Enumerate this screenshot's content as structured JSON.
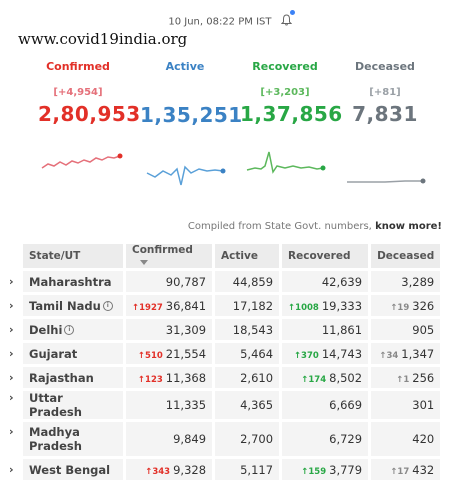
{
  "header": {
    "timestamp": "10 Jun, 08:22 PM IST",
    "site_watermark": "www.covid19india.org"
  },
  "stats": {
    "confirmed": {
      "label": "Confirmed",
      "delta": "[+4,954]",
      "value": "2,80,953",
      "color": "#e23028"
    },
    "active": {
      "label": "Active",
      "delta": "",
      "value": "1,35,251",
      "color": "#3b82c4"
    },
    "recovered": {
      "label": "Recovered",
      "delta": "[+3,203]",
      "value": "1,37,856",
      "color": "#28a745"
    },
    "deceased": {
      "label": "Deceased",
      "delta": "[+81]",
      "value": "7,831",
      "color": "#6c757d"
    }
  },
  "compiled": {
    "text": "Compiled from State Govt. numbers,",
    "link": "know more!"
  },
  "table": {
    "headers": {
      "state": "State/UT",
      "confirmed": "Confirmed",
      "active": "Active",
      "recovered": "Recovered",
      "deceased": "Deceased"
    },
    "rows": [
      {
        "state": "Maharashtra",
        "conf_inc": "",
        "confirmed": "90,787",
        "active": "44,859",
        "rec_inc": "",
        "recovered": "42,639",
        "dec_inc": "",
        "deceased": "3,289"
      },
      {
        "state": "Tamil Nadu",
        "conf_inc": "1927",
        "confirmed": "36,841",
        "active": "17,182",
        "rec_inc": "1008",
        "recovered": "19,333",
        "dec_inc": "19",
        "deceased": "326"
      },
      {
        "state": "Delhi",
        "conf_inc": "",
        "confirmed": "31,309",
        "active": "18,543",
        "rec_inc": "",
        "recovered": "11,861",
        "dec_inc": "",
        "deceased": "905"
      },
      {
        "state": "Gujarat",
        "conf_inc": "510",
        "confirmed": "21,554",
        "active": "5,464",
        "rec_inc": "370",
        "recovered": "14,743",
        "dec_inc": "34",
        "deceased": "1,347"
      },
      {
        "state": "Rajasthan",
        "conf_inc": "123",
        "confirmed": "11,368",
        "active": "2,610",
        "rec_inc": "174",
        "recovered": "8,502",
        "dec_inc": "1",
        "deceased": "256"
      },
      {
        "state": "Uttar Pradesh",
        "conf_inc": "",
        "confirmed": "11,335",
        "active": "4,365",
        "rec_inc": "",
        "recovered": "6,669",
        "dec_inc": "",
        "deceased": "301"
      },
      {
        "state": "Madhya Pradesh",
        "conf_inc": "",
        "confirmed": "9,849",
        "active": "2,700",
        "rec_inc": "",
        "recovered": "6,729",
        "dec_inc": "",
        "deceased": "420"
      },
      {
        "state": "West Bengal",
        "conf_inc": "343",
        "confirmed": "9,328",
        "active": "5,117",
        "rec_inc": "159",
        "recovered": "3,779",
        "dec_inc": "17",
        "deceased": "432"
      }
    ]
  }
}
